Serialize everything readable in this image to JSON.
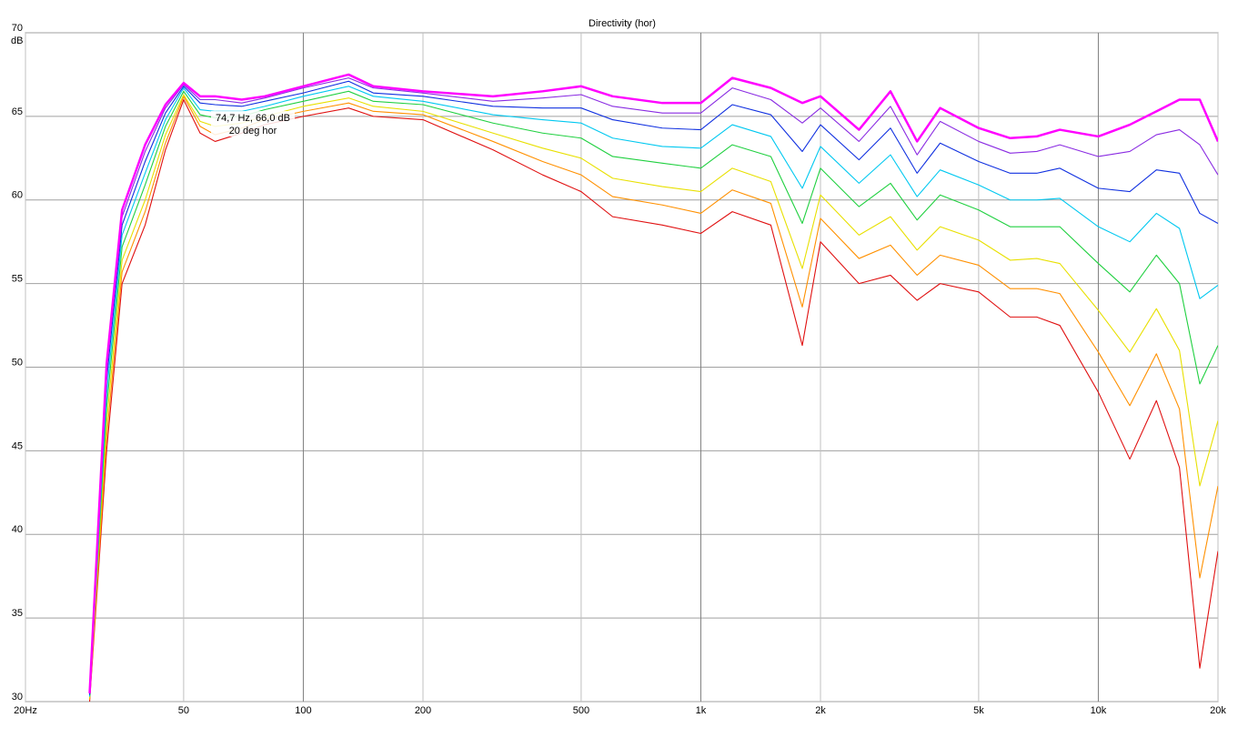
{
  "chart_data": {
    "type": "line",
    "title": "Directivity (hor)",
    "y_label": "dB",
    "log_x": true,
    "grid": true,
    "xlim": [
      20,
      20000
    ],
    "ylim": [
      30,
      70
    ],
    "xticks": [
      {
        "value": 20,
        "label": "20Hz"
      },
      50,
      100,
      200,
      500,
      {
        "value": 1000,
        "label": "1k"
      },
      {
        "value": 2000,
        "label": "2k"
      },
      {
        "value": 5000,
        "label": "5k"
      },
      {
        "value": 10000,
        "label": "10k"
      },
      {
        "value": 20000,
        "label": "20k"
      }
    ],
    "yticks": [
      30,
      35,
      40,
      45,
      50,
      55,
      60,
      65,
      70
    ],
    "annotations": [
      "74,7 Hz, 66,0 dB",
      "20 deg hor"
    ],
    "x": [
      29,
      32,
      35,
      40,
      45,
      50,
      55,
      60,
      70,
      80,
      100,
      130,
      150,
      200,
      300,
      400,
      500,
      600,
      800,
      1000,
      1200,
      1500,
      1800,
      2000,
      2500,
      3000,
      3500,
      4000,
      5000,
      6000,
      7000,
      8000,
      10000,
      12000,
      14000,
      16000,
      18000,
      20000
    ],
    "series": [
      {
        "color": "#ff00ff",
        "values": [
          30.5,
          50.2,
          59.4,
          63.3,
          65.7,
          67,
          66.2,
          66.2,
          66,
          66.2,
          66.8,
          67.5,
          66.8,
          66.5,
          66.2,
          66.5,
          66.8,
          66.2,
          65.8,
          65.8,
          67.3,
          66.7,
          65.8,
          66.2,
          64.2,
          66.5,
          63.5,
          65.5,
          64.3,
          63.7,
          63.8,
          64.2,
          63.8,
          64.5,
          65.3,
          66,
          66,
          63.5
        ]
      },
      {
        "color": "#8a2be2",
        "values": [
          30.5,
          49.8,
          59.0,
          62.9,
          65.5,
          66.9,
          66.0,
          66.0,
          65.8,
          66.1,
          66.7,
          67.3,
          66.7,
          66.4,
          65.9,
          66.1,
          66.3,
          65.6,
          65.2,
          65.2,
          66.7,
          66.0,
          64.6,
          65.5,
          63.5,
          65.6,
          62.7,
          64.7,
          63.5,
          62.8,
          62.9,
          63.3,
          62.6,
          62.9,
          63.9,
          64.2,
          63.3,
          61.5
        ]
      },
      {
        "color": "#1030e0",
        "values": [
          30.4,
          49.2,
          58.5,
          62.3,
          65.2,
          66.8,
          65.8,
          65.7,
          65.6,
          65.9,
          66.4,
          67.1,
          66.4,
          66.2,
          65.6,
          65.5,
          65.5,
          64.8,
          64.3,
          64.2,
          65.7,
          65.1,
          62.9,
          64.5,
          62.4,
          64.3,
          61.6,
          63.4,
          62.3,
          61.6,
          61.6,
          61.9,
          60.7,
          60.5,
          61.8,
          61.6,
          59.2,
          58.6
        ]
      },
      {
        "color": "#00c8f0",
        "values": [
          30.3,
          48.4,
          57.9,
          61.6,
          64.8,
          66.7,
          65.4,
          65.3,
          65.3,
          65.6,
          66.2,
          66.8,
          66.2,
          65.9,
          65.1,
          64.8,
          64.6,
          63.7,
          63.2,
          63.1,
          64.5,
          63.8,
          60.7,
          63.2,
          61.0,
          62.7,
          60.2,
          61.8,
          60.9,
          60.0,
          60.0,
          60.1,
          58.4,
          57.5,
          59.2,
          58.3,
          54.1,
          54.9
        ]
      },
      {
        "color": "#20d040",
        "values": [
          30.3,
          47.6,
          57.2,
          60.9,
          64.4,
          66.5,
          65.1,
          64.9,
          65.0,
          65.4,
          65.9,
          66.5,
          65.9,
          65.7,
          64.6,
          64.0,
          63.7,
          62.6,
          62.2,
          61.9,
          63.3,
          62.6,
          58.6,
          61.9,
          59.6,
          61.0,
          58.8,
          60.3,
          59.4,
          58.4,
          58.4,
          58.4,
          56.2,
          54.5,
          56.7,
          55.0,
          49.0,
          51.3
        ]
      },
      {
        "color": "#e8e000",
        "values": [
          30.2,
          46.7,
          56.4,
          60.0,
          63.9,
          66.3,
          64.7,
          64.4,
          64.6,
          65.0,
          65.6,
          66.1,
          65.6,
          65.3,
          64.0,
          63.1,
          62.5,
          61.3,
          60.8,
          60.5,
          61.9,
          61.1,
          55.9,
          60.3,
          57.9,
          59.0,
          57.0,
          58.4,
          57.6,
          56.4,
          56.5,
          56.2,
          53.4,
          50.9,
          53.5,
          51.0,
          42.9,
          46.8
        ]
      },
      {
        "color": "#ff9000",
        "values": [
          30.1,
          45.8,
          55.7,
          59.3,
          63.4,
          66.2,
          64.4,
          63.9,
          64.3,
          64.8,
          65.3,
          65.8,
          65.3,
          65.1,
          63.5,
          62.3,
          61.5,
          60.2,
          59.7,
          59.2,
          60.6,
          59.8,
          53.6,
          58.9,
          56.5,
          57.3,
          55.5,
          56.7,
          56.1,
          54.7,
          54.7,
          54.4,
          50.9,
          47.7,
          50.8,
          47.5,
          37.4,
          42.9
        ]
      },
      {
        "color": "#e01010",
        "values": [
          30,
          45,
          55,
          58.5,
          63,
          66,
          64,
          63.5,
          64,
          64.5,
          65,
          65.5,
          65,
          64.8,
          63,
          61.5,
          60.5,
          59,
          58.5,
          58,
          59.3,
          58.5,
          51.3,
          57.5,
          55,
          55.5,
          54,
          55,
          54.5,
          53,
          53,
          52.5,
          48.5,
          44.5,
          48,
          44,
          32,
          39
        ]
      }
    ]
  }
}
